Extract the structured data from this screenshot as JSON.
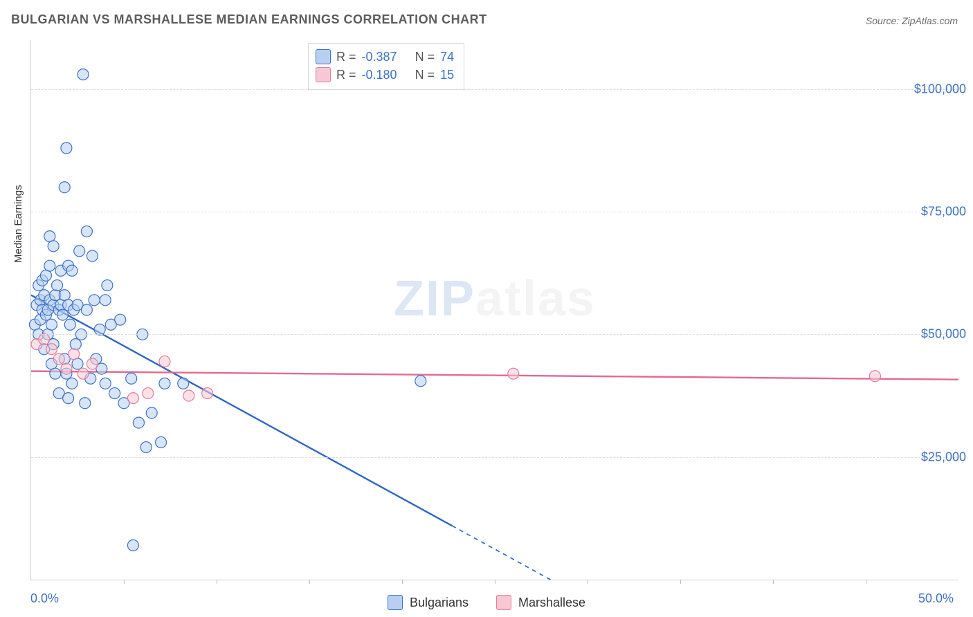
{
  "title": "BULGARIAN VS MARSHALLESE MEDIAN EARNINGS CORRELATION CHART",
  "source_prefix": "Source: ",
  "source_site": "ZipAtlas.com",
  "ylabel": "Median Earnings",
  "watermark_zip": "ZIP",
  "watermark_atlas": "atlas",
  "chart": {
    "type": "scatter+regression",
    "xlim": [
      0,
      50
    ],
    "ylim": [
      0,
      110000
    ],
    "xtick_minor_step": 5,
    "xtick_labels": {
      "0": "0.0%",
      "50": "50.0%"
    },
    "ytick_values": [
      25000,
      50000,
      75000,
      100000
    ],
    "ytick_labels": [
      "$25,000",
      "$50,000",
      "$75,000",
      "$100,000"
    ],
    "grid_dash_color": "#dcdcdc",
    "axis_color": "#cfcfcf",
    "background_color": "#ffffff",
    "series": [
      {
        "name": "Bulgarians",
        "marker_fill": "#b7d0f2",
        "marker_stroke": "#3e72c4",
        "marker_fill_opacity": 0.55,
        "marker_radius": 8,
        "line_color": "#2f66c4",
        "line_width": 2.4,
        "R": "-0.387",
        "N": "74",
        "regression": {
          "x1": 0,
          "y1": 58000,
          "x2": 28,
          "y2": 0,
          "dash_after_x": 22.7
        },
        "points": [
          [
            0.2,
            52000
          ],
          [
            0.3,
            56000
          ],
          [
            0.4,
            50000
          ],
          [
            0.4,
            60000
          ],
          [
            0.5,
            57000
          ],
          [
            0.5,
            53000
          ],
          [
            0.6,
            61000
          ],
          [
            0.6,
            55000
          ],
          [
            0.7,
            58000
          ],
          [
            0.7,
            47000
          ],
          [
            0.8,
            62000
          ],
          [
            0.8,
            54000
          ],
          [
            0.9,
            55000
          ],
          [
            0.9,
            50000
          ],
          [
            1.0,
            57000
          ],
          [
            1.0,
            64000
          ],
          [
            1.0,
            70000
          ],
          [
            1.1,
            52000
          ],
          [
            1.1,
            44000
          ],
          [
            1.2,
            56000
          ],
          [
            1.2,
            48000
          ],
          [
            1.3,
            58000
          ],
          [
            1.3,
            42000
          ],
          [
            1.4,
            60000
          ],
          [
            1.5,
            55000
          ],
          [
            1.5,
            38000
          ],
          [
            1.6,
            56000
          ],
          [
            1.6,
            63000
          ],
          [
            1.7,
            54000
          ],
          [
            1.8,
            45000
          ],
          [
            1.8,
            58000
          ],
          [
            1.9,
            42000
          ],
          [
            2.0,
            56000
          ],
          [
            2.0,
            37000
          ],
          [
            2.0,
            64000
          ],
          [
            2.1,
            52000
          ],
          [
            2.2,
            40000
          ],
          [
            2.3,
            55000
          ],
          [
            2.4,
            48000
          ],
          [
            2.5,
            44000
          ],
          [
            2.5,
            56000
          ],
          [
            2.7,
            50000
          ],
          [
            2.8,
            103000
          ],
          [
            2.9,
            36000
          ],
          [
            3.0,
            55000
          ],
          [
            3.2,
            41000
          ],
          [
            3.4,
            57000
          ],
          [
            3.5,
            45000
          ],
          [
            3.7,
            51000
          ],
          [
            3.8,
            43000
          ],
          [
            4.0,
            40000
          ],
          [
            4.0,
            57000
          ],
          [
            4.3,
            52000
          ],
          [
            4.5,
            38000
          ],
          [
            4.8,
            53000
          ],
          [
            5.0,
            36000
          ],
          [
            5.4,
            41000
          ],
          [
            5.5,
            7000
          ],
          [
            5.8,
            32000
          ],
          [
            6.0,
            50000
          ],
          [
            6.2,
            27000
          ],
          [
            6.5,
            34000
          ],
          [
            7.0,
            28000
          ],
          [
            7.2,
            40000
          ],
          [
            1.9,
            88000
          ],
          [
            1.8,
            80000
          ],
          [
            3.0,
            71000
          ],
          [
            3.3,
            66000
          ],
          [
            4.1,
            60000
          ],
          [
            2.2,
            63000
          ],
          [
            2.6,
            67000
          ],
          [
            1.2,
            68000
          ],
          [
            8.2,
            40000
          ],
          [
            21.0,
            40500
          ]
        ]
      },
      {
        "name": "Marshallese",
        "marker_fill": "#f6c8d4",
        "marker_stroke": "#e67b9a",
        "marker_fill_opacity": 0.55,
        "marker_radius": 8,
        "line_color": "#e46a8e",
        "line_width": 2.4,
        "R": "-0.180",
        "N": "15",
        "regression": {
          "x1": 0,
          "y1": 42500,
          "x2": 50,
          "y2": 40800,
          "dash_after_x": 50
        },
        "points": [
          [
            0.3,
            48000
          ],
          [
            0.7,
            49000
          ],
          [
            1.1,
            47000
          ],
          [
            1.5,
            45000
          ],
          [
            1.9,
            43000
          ],
          [
            2.3,
            46000
          ],
          [
            2.8,
            42000
          ],
          [
            3.3,
            44000
          ],
          [
            5.5,
            37000
          ],
          [
            6.3,
            38000
          ],
          [
            7.2,
            44500
          ],
          [
            8.5,
            37500
          ],
          [
            9.5,
            38000
          ],
          [
            26.0,
            42000
          ],
          [
            45.5,
            41500
          ]
        ]
      }
    ],
    "legend_labels": [
      "Bulgarians",
      "Marshallese"
    ],
    "statbox_labels": {
      "R": "R =",
      "N": "N ="
    }
  },
  "colors": {
    "title_text": "#5c5c5c",
    "source_text": "#6b6b6b",
    "tick_text": "#3e72c4"
  }
}
